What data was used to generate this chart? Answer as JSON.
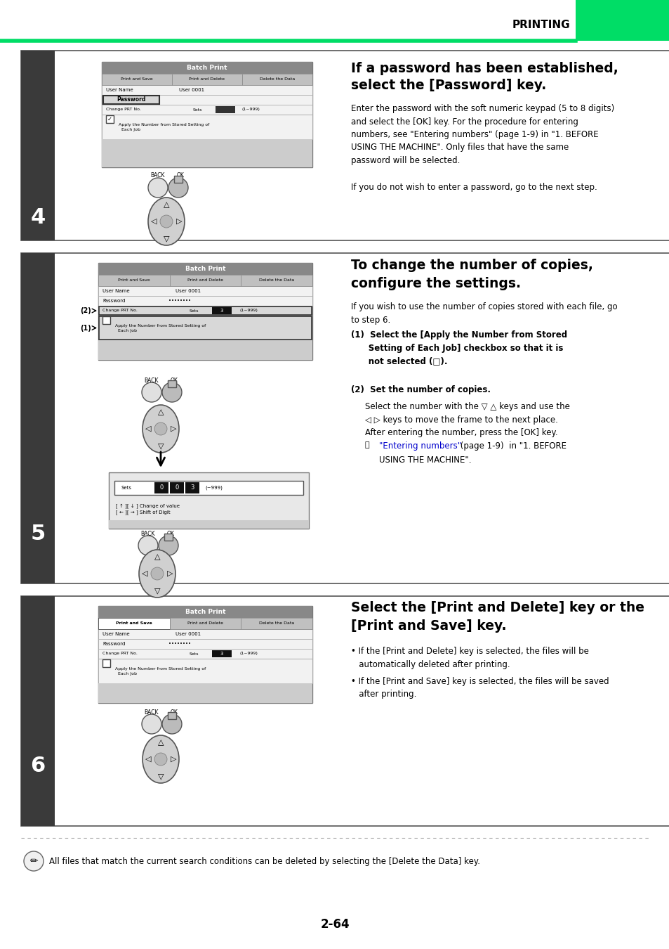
{
  "page_title": "PRINTING",
  "page_number": "2-64",
  "green_color": "#00DD66",
  "dark_sidebar_color": "#3a3a3a",
  "step_text_color": "#ffffff",
  "step_numbers": [
    "4",
    "5",
    "6"
  ],
  "bg_color": "#ffffff",
  "text_color": "#000000",
  "link_color": "#0000cc",
  "section1_title_line1": "If a password has been established,",
  "section1_title_line2": "select the [Password] key.",
  "section1_body1": "Enter the password with the soft numeric keypad (5 to 8 digits)\nand select the [OK] key. For the procedure for entering\nnumbers, see ",
  "section1_link": "\"Entering numbers\"",
  "section1_body1b": " (page 1-9) in \"1. BEFORE\nUSING THE MACHINE\". Only files that have the same\npassword will be selected.",
  "section1_body2": "If you do not wish to enter a password, go to the next step.",
  "section2_title_line1": "To change the number of copies,",
  "section2_title_line2": "configure the settings.",
  "section2_intro": "If you wish to use the number of copies stored with each file, go\nto step 6.",
  "section2_item1_bold": "(1)  Select the [Apply the Number from Stored\n      Setting of Each Job] checkbox so that it is\n      not selected (□).",
  "section2_item2_bold": "(2)  Set the number of copies.",
  "section2_sub1": "Select the number with the ▽ △ keys and use the\n◁ ▷ keys to move the frame to the next place.\nAfter entering the number, press the [OK] key.",
  "section2_sub2_link": "\"Entering numbers\"",
  "section2_sub2": " (page 1-9)  in \"1. BEFORE\n     USING THE MACHINE\".",
  "section3_title_line1": "Select the [Print and Delete] key or the",
  "section3_title_line2": "[Print and Save] key.",
  "section3_item1": "• If the [Print and Delete] key is selected, the files will be\n   automatically deleted after printing.",
  "section3_item2": "• If the [Print and Save] key is selected, the files will be saved\n   after printing.",
  "bottom_note": "All files that match the current search conditions can be deleted by selecting the [Delete the Data] key.",
  "screen_header_color": "#888888",
  "screen_bg_color": "#e8e8e8",
  "screen_tab_color": "#c0c0c0",
  "screen_row_color": "#f2f2f2",
  "screen_border_color": "#999999",
  "screen_bottom_color": "#cccccc"
}
